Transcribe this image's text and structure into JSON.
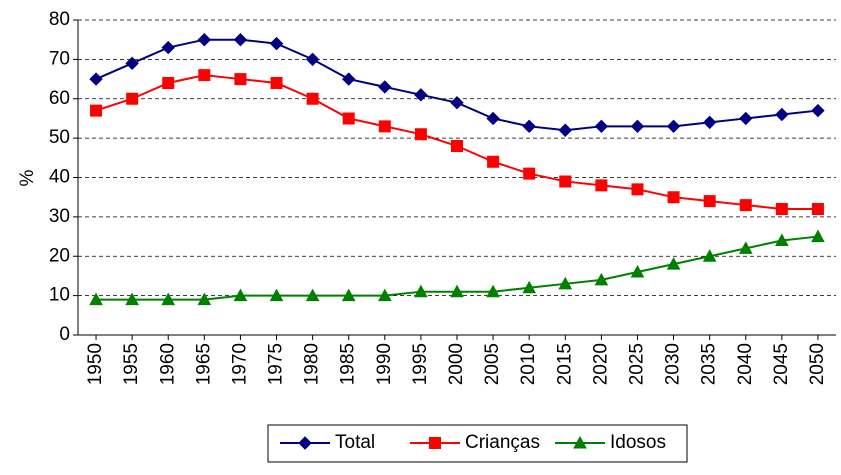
{
  "chart_data": {
    "type": "line",
    "y_label": "%",
    "x": [
      1950,
      1955,
      1960,
      1965,
      1970,
      1975,
      1980,
      1985,
      1990,
      1995,
      2000,
      2005,
      2010,
      2015,
      2020,
      2025,
      2030,
      2035,
      2040,
      2045,
      2050
    ],
    "series": [
      {
        "name": "Total",
        "color": "#000080",
        "marker": "diamond",
        "values": [
          65,
          69,
          73,
          75,
          75,
          74,
          70,
          65,
          63,
          61,
          59,
          55,
          53,
          52,
          53,
          53,
          53,
          54,
          55,
          56,
          57
        ]
      },
      {
        "name": "Crianças",
        "color": "#ff0000",
        "marker": "square",
        "values": [
          57,
          60,
          64,
          66,
          65,
          64,
          60,
          55,
          53,
          51,
          48,
          44,
          41,
          39,
          38,
          37,
          35,
          34,
          33,
          32,
          32
        ]
      },
      {
        "name": "Idosos",
        "color": "#008000",
        "marker": "triangle",
        "values": [
          9,
          9,
          9,
          9,
          10,
          10,
          10,
          10,
          10,
          11,
          11,
          11,
          12,
          13,
          14,
          16,
          18,
          20,
          22,
          24,
          25
        ]
      }
    ],
    "ylim": [
      0,
      80
    ],
    "yticks": [
      0,
      10,
      20,
      30,
      40,
      50,
      60,
      70,
      80
    ],
    "grid": true,
    "legend": "bottom"
  }
}
